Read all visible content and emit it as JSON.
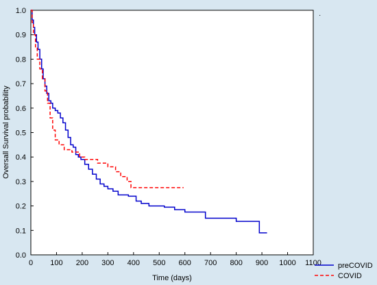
{
  "chart_data": {
    "type": "line",
    "title": "",
    "xlabel": "Time (days)",
    "ylabel": "Oversall Survival probability",
    "xlim": [
      0,
      1100
    ],
    "ylim": [
      0.0,
      1.0
    ],
    "xticks": [
      0,
      100,
      200,
      300,
      400,
      500,
      600,
      700,
      800,
      900,
      1000,
      1100
    ],
    "yticks": [
      "0.0",
      "0.1",
      "0.2",
      "0.3",
      "0.4",
      "0.5",
      "0.6",
      "0.7",
      "0.8",
      "0.9",
      "1.0"
    ],
    "grid": false,
    "legend_position": "bottom-right",
    "series": [
      {
        "name": "preCOVID",
        "color": "#0000cc",
        "style": "solid",
        "x": [
          0,
          5,
          10,
          15,
          22,
          28,
          35,
          42,
          48,
          55,
          62,
          70,
          78,
          85,
          95,
          105,
          115,
          125,
          135,
          145,
          155,
          165,
          175,
          185,
          195,
          210,
          225,
          240,
          255,
          270,
          285,
          300,
          320,
          340,
          380,
          410,
          430,
          460,
          520,
          560,
          600,
          680,
          800,
          890,
          920
        ],
        "y": [
          1.0,
          0.96,
          0.93,
          0.9,
          0.87,
          0.84,
          0.8,
          0.76,
          0.72,
          0.69,
          0.66,
          0.63,
          0.62,
          0.6,
          0.59,
          0.58,
          0.56,
          0.54,
          0.51,
          0.48,
          0.45,
          0.44,
          0.41,
          0.4,
          0.39,
          0.37,
          0.35,
          0.33,
          0.31,
          0.29,
          0.28,
          0.27,
          0.26,
          0.245,
          0.24,
          0.22,
          0.21,
          0.2,
          0.195,
          0.185,
          0.175,
          0.15,
          0.137,
          0.09,
          0.09
        ]
      },
      {
        "name": "COVID",
        "color": "#ff0000",
        "style": "dashed",
        "x": [
          0,
          5,
          10,
          18,
          25,
          35,
          45,
          55,
          65,
          75,
          85,
          95,
          110,
          130,
          160,
          190,
          210,
          260,
          300,
          330,
          350,
          375,
          390,
          595
        ],
        "y": [
          1.0,
          0.95,
          0.9,
          0.85,
          0.8,
          0.76,
          0.72,
          0.67,
          0.62,
          0.56,
          0.51,
          0.47,
          0.45,
          0.43,
          0.42,
          0.4,
          0.39,
          0.375,
          0.36,
          0.34,
          0.32,
          0.3,
          0.275,
          0.275
        ]
      }
    ]
  },
  "corner_mark": "·"
}
